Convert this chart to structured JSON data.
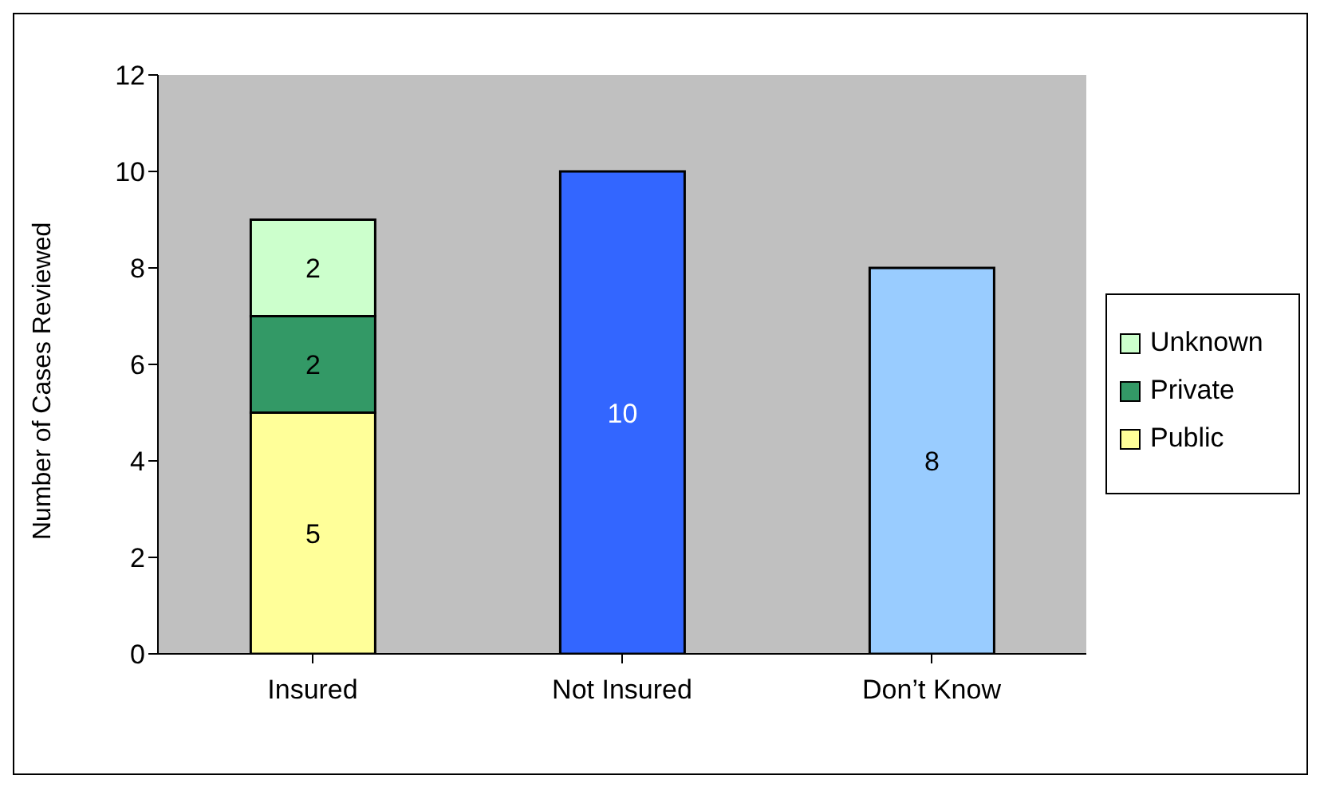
{
  "chart_data": {
    "type": "bar",
    "stacked": true,
    "ylabel": "Number of Cases Reviewed",
    "categories": [
      "Insured",
      "Not Insured",
      "Don’t Know"
    ],
    "series": [
      {
        "name": "Public",
        "color": "#ffff99",
        "values": [
          5,
          null,
          null
        ]
      },
      {
        "name": "Private",
        "color": "#339966",
        "values": [
          2,
          null,
          null
        ]
      },
      {
        "name": "Unknown",
        "color": "#ccffcc",
        "values": [
          2,
          null,
          null
        ]
      },
      {
        "color": "#3366ff",
        "values": [
          null,
          10,
          null
        ]
      },
      {
        "color": "#99ccff",
        "values": [
          null,
          null,
          8
        ]
      }
    ],
    "ylim": [
      0,
      12
    ],
    "yticks": [
      0,
      2,
      4,
      6,
      8,
      10,
      12
    ],
    "grid": false,
    "legend": "right",
    "data_labels": true
  }
}
